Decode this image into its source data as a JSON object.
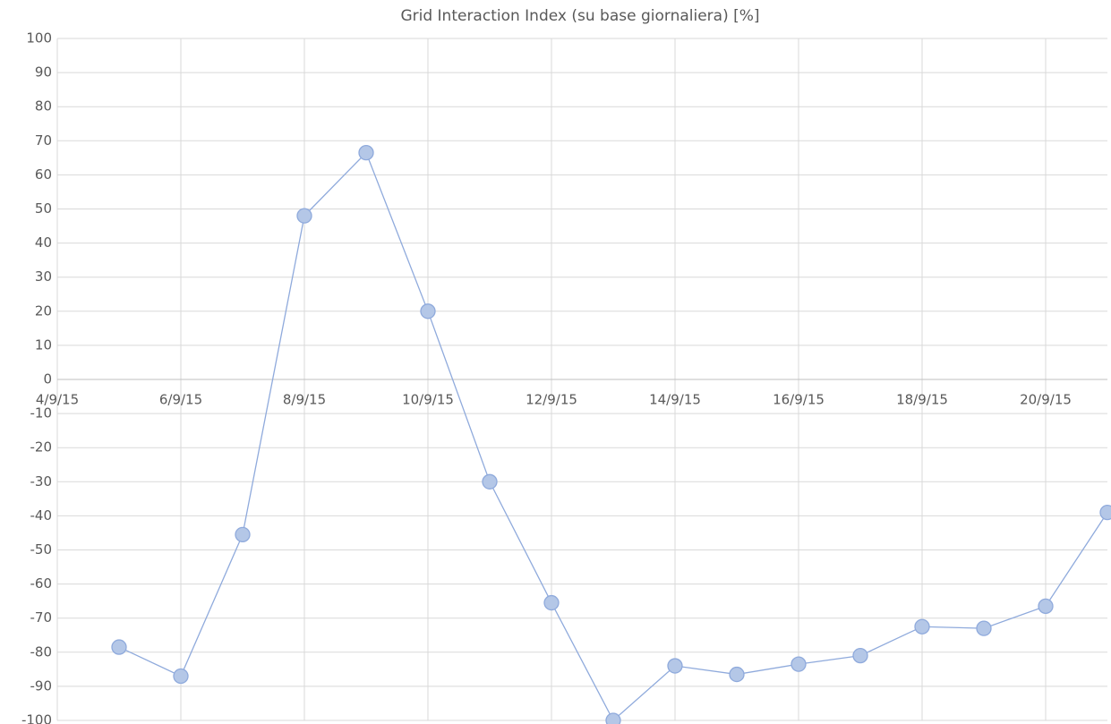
{
  "chart_data": {
    "type": "line",
    "title": "Grid Interaction Index (su base giornaliera) [%]",
    "x": [
      "5/9/15",
      "6/9/15",
      "7/9/15",
      "8/9/15",
      "9/9/15",
      "10/9/15",
      "11/9/15",
      "12/9/15",
      "13/9/15",
      "14/9/15",
      "15/9/15",
      "16/9/15",
      "17/9/15",
      "18/9/15",
      "19/9/15",
      "20/9/15",
      "21/9/15"
    ],
    "series": [
      {
        "color": "#8faadc",
        "marker_color": "#b4c7e7",
        "values": [
          -78.5,
          -87,
          -45.5,
          48,
          66.5,
          20,
          -30,
          -65.5,
          -100,
          -84,
          -86.5,
          -83.5,
          -81,
          -72.5,
          -73,
          -66.5,
          -39
        ]
      }
    ],
    "xlim": [
      "4/9/15",
      "21/9/15"
    ],
    "xticks": [
      "4/9/15",
      "6/9/15",
      "8/9/15",
      "10/9/15",
      "12/9/15",
      "14/9/15",
      "16/9/15",
      "18/9/15",
      "20/9/15"
    ],
    "ylim": [
      -100,
      100
    ],
    "yticks": [
      -100,
      -90,
      -80,
      -70,
      -60,
      -50,
      -40,
      -30,
      -20,
      -10,
      0,
      10,
      20,
      30,
      40,
      50,
      60,
      70,
      80,
      90,
      100
    ],
    "grid": true
  }
}
